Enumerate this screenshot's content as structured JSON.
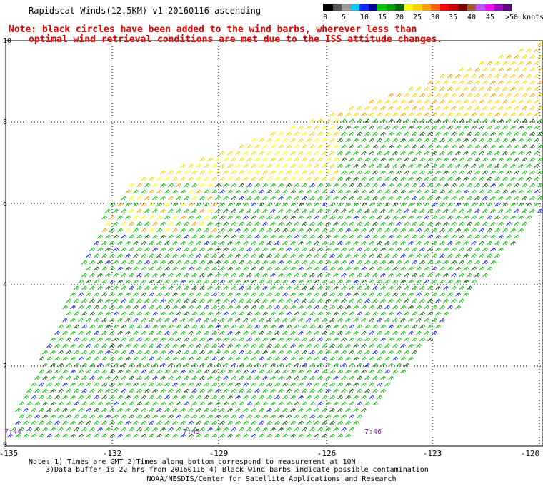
{
  "header": {
    "title": "Rapidscat Winds(12.5KM) v1 20160116 ascending",
    "note_line1": "Note: black circles have been added to the wind barbs, wherever less than",
    "note_line2": "optimal wind retrieval conditions are met due to the ISS attitude changes."
  },
  "color_scale": {
    "labels": [
      "0",
      "5",
      "10",
      "15",
      "20",
      "25",
      "30",
      "35",
      "40",
      "45",
      ">50 knots"
    ],
    "colors": [
      "#000000",
      "#555555",
      "#999999",
      "#00c8ff",
      "#0a28ff",
      "#0000a0",
      "#00c800",
      "#00a000",
      "#006400",
      "#ffff00",
      "#ffd400",
      "#ffa000",
      "#ff6000",
      "#ff0000",
      "#c80000",
      "#800000",
      "#a05a2c",
      "#c050ff",
      "#ff00ff",
      "#a000c8",
      "#600080"
    ]
  },
  "map": {
    "lat_ticks": [
      "10",
      "8",
      "6",
      "4",
      "2",
      "0"
    ],
    "lon_ticks": [
      "-135",
      "-132",
      "-129",
      "-126",
      "-123",
      "-120"
    ],
    "time_labels": [
      "7:44",
      "7:45",
      "7:46"
    ]
  },
  "footer": {
    "note_line1": "Note: 1) Times are GMT 2)Times along bottom correspond to measurement at 10N",
    "note_line2": "3)Data buffer is 22 hrs from 20160116 4) Black wind barbs indicate possible contamination",
    "credit": "NOAA/NESDIS/Center for Satellite Applications and Research"
  }
}
